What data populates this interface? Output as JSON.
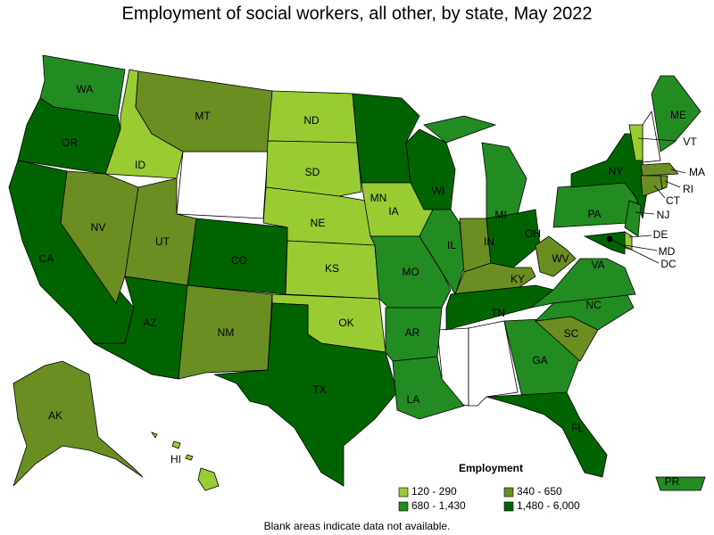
{
  "title": "Employment of social workers, all other, by state, May 2022",
  "legend": {
    "title": "Employment",
    "items": [
      {
        "label": "120 - 290",
        "color": "#99cc33"
      },
      {
        "label": "340 - 650",
        "color": "#6b8e23"
      },
      {
        "label": "680 - 1,430",
        "color": "#228b22"
      },
      {
        "label": "1,480 - 6,000",
        "color": "#006400"
      }
    ]
  },
  "states": [
    {
      "abbr": "WA",
      "color": "#228b22"
    },
    {
      "abbr": "OR",
      "color": "#006400"
    },
    {
      "abbr": "CA",
      "color": "#006400"
    },
    {
      "abbr": "ID",
      "color": "#99cc33"
    },
    {
      "abbr": "NV",
      "color": "#6b8e23"
    },
    {
      "abbr": "UT",
      "color": "#6b8e23"
    },
    {
      "abbr": "AZ",
      "color": "#006400"
    },
    {
      "abbr": "MT",
      "color": "#6b8e23"
    },
    {
      "abbr": "CO",
      "color": "#006400"
    },
    {
      "abbr": "NM",
      "color": "#6b8e23"
    },
    {
      "abbr": "ND",
      "color": "#99cc33"
    },
    {
      "abbr": "SD",
      "color": "#99cc33"
    },
    {
      "abbr": "NE",
      "color": "#99cc33"
    },
    {
      "abbr": "KS",
      "color": "#99cc33"
    },
    {
      "abbr": "OK",
      "color": "#99cc33"
    },
    {
      "abbr": "TX",
      "color": "#006400"
    },
    {
      "abbr": "MN",
      "color": "#006400"
    },
    {
      "abbr": "IA",
      "color": "#99cc33"
    },
    {
      "abbr": "MO",
      "color": "#228b22"
    },
    {
      "abbr": "AR",
      "color": "#228b22"
    },
    {
      "abbr": "LA",
      "color": "#228b22"
    },
    {
      "abbr": "WI",
      "color": "#006400"
    },
    {
      "abbr": "IL",
      "color": "#228b22"
    },
    {
      "abbr": "MI",
      "color": "#228b22"
    },
    {
      "abbr": "IN",
      "color": "#6b8e23"
    },
    {
      "abbr": "OH",
      "color": "#006400"
    },
    {
      "abbr": "KY",
      "color": "#6b8e23"
    },
    {
      "abbr": "TN",
      "color": "#006400"
    },
    {
      "abbr": "GA",
      "color": "#228b22"
    },
    {
      "abbr": "FL",
      "color": "#006400"
    },
    {
      "abbr": "SC",
      "color": "#6b8e23"
    },
    {
      "abbr": "NC",
      "color": "#228b22"
    },
    {
      "abbr": "VA",
      "color": "#228b22"
    },
    {
      "abbr": "WV",
      "color": "#6b8e23"
    },
    {
      "abbr": "PA",
      "color": "#228b22"
    },
    {
      "abbr": "NY",
      "color": "#006400"
    },
    {
      "abbr": "VT",
      "color": "#99cc33"
    },
    {
      "abbr": "ME",
      "color": "#228b22"
    },
    {
      "abbr": "MA",
      "color": "#6b8e23"
    },
    {
      "abbr": "RI",
      "color": "#6b8e23"
    },
    {
      "abbr": "CT",
      "color": "#6b8e23"
    },
    {
      "abbr": "NJ",
      "color": "#228b22"
    },
    {
      "abbr": "DE",
      "color": "#99cc33"
    },
    {
      "abbr": "MD",
      "color": "#006400"
    },
    {
      "abbr": "DC",
      "color": "#000000"
    },
    {
      "abbr": "AK",
      "color": "#6b8e23"
    },
    {
      "abbr": "HI",
      "color": "#99cc33"
    },
    {
      "abbr": "PR",
      "color": "#228b22"
    }
  ],
  "note": "Blank areas indicate data not available."
}
